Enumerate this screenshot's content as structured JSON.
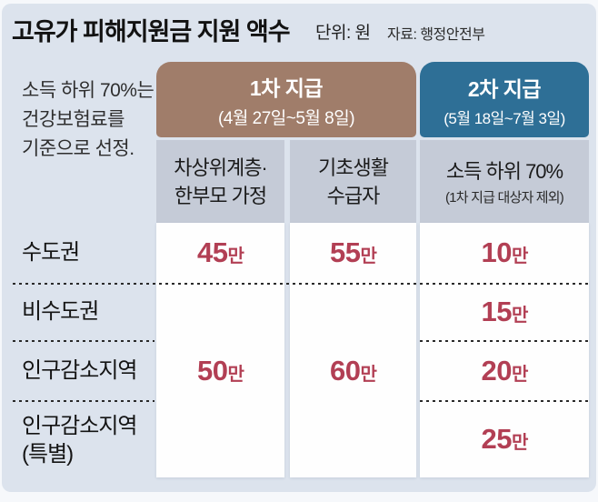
{
  "header": {
    "title": "고유가 피해지원금 지원 액수",
    "unit_label": "단위: 원",
    "source_label": "자료: 행정안전부"
  },
  "note": {
    "text": "소득 하위 70%는\n건강보험료를\n기준으로 선정."
  },
  "groups": [
    {
      "title": "1차 지급",
      "period": "(4월 27일~5월 8일)",
      "color": "#a07d6a"
    },
    {
      "title": "2차 지급",
      "period": "(5월 18일~7월 3일)",
      "color": "#2e6f96"
    }
  ],
  "columns": [
    {
      "label": "차상위계층·\n한부모 가정"
    },
    {
      "label": "기초생활\n수급자"
    },
    {
      "label": "소득 하위 70%",
      "sublabel": "(1차 지급 대상자 제외)"
    }
  ],
  "rows": [
    {
      "label": "수도권"
    },
    {
      "label": "비수도권"
    },
    {
      "label": "인구감소지역"
    },
    {
      "label": "인구감소지역\n(특별)"
    }
  ],
  "cells": {
    "col1": {
      "r1": {
        "num": "45",
        "suffix": "만"
      },
      "r3": {
        "num": "50",
        "suffix": "만"
      }
    },
    "col2": {
      "r1": {
        "num": "55",
        "suffix": "만"
      },
      "r3": {
        "num": "60",
        "suffix": "만"
      }
    },
    "col3": {
      "r1": {
        "num": "10",
        "suffix": "만"
      },
      "r2": {
        "num": "15",
        "suffix": "만"
      },
      "r3": {
        "num": "20",
        "suffix": "만"
      },
      "r4": {
        "num": "25",
        "suffix": "만"
      }
    }
  },
  "colors": {
    "panel_background": "#dce3ed",
    "first_payment_header": "#a07d6a",
    "second_payment_header": "#2e6f96",
    "column_subheader": "#c5cbd7",
    "value_cell": "#fefefe",
    "value_text": "#b23f54",
    "text_dark": "#141414"
  },
  "chart_data": {
    "type": "table",
    "title": "고유가 피해지원금 지원 액수",
    "unit": "원",
    "source": "행정안전부",
    "note": "소득 하위 70%는 건강보험료를 기준으로 선정.",
    "column_groups": [
      {
        "name": "1차 지급",
        "period": "4월 27일~5월 8일",
        "columns": [
          "차상위계층·한부모 가정",
          "기초생활 수급자"
        ]
      },
      {
        "name": "2차 지급",
        "period": "5월 18일~7월 3일",
        "columns": [
          "소득 하위 70% (1차 지급 대상자 제외)"
        ]
      }
    ],
    "categories": [
      "수도권",
      "비수도권",
      "인구감소지역",
      "인구감소지역 (특별)"
    ],
    "series": [
      {
        "name": "1차 지급 - 차상위계층·한부모 가정",
        "display": [
          "45만",
          "",
          "50만",
          ""
        ],
        "values_won": [
          450000,
          null,
          500000,
          null
        ]
      },
      {
        "name": "1차 지급 - 기초생활 수급자",
        "display": [
          "55만",
          "",
          "60만",
          ""
        ],
        "values_won": [
          550000,
          null,
          600000,
          null
        ]
      },
      {
        "name": "2차 지급 - 소득 하위 70%",
        "display": [
          "10만",
          "15만",
          "20만",
          "25만"
        ],
        "values_won": [
          100000,
          150000,
          200000,
          250000
        ]
      }
    ]
  }
}
